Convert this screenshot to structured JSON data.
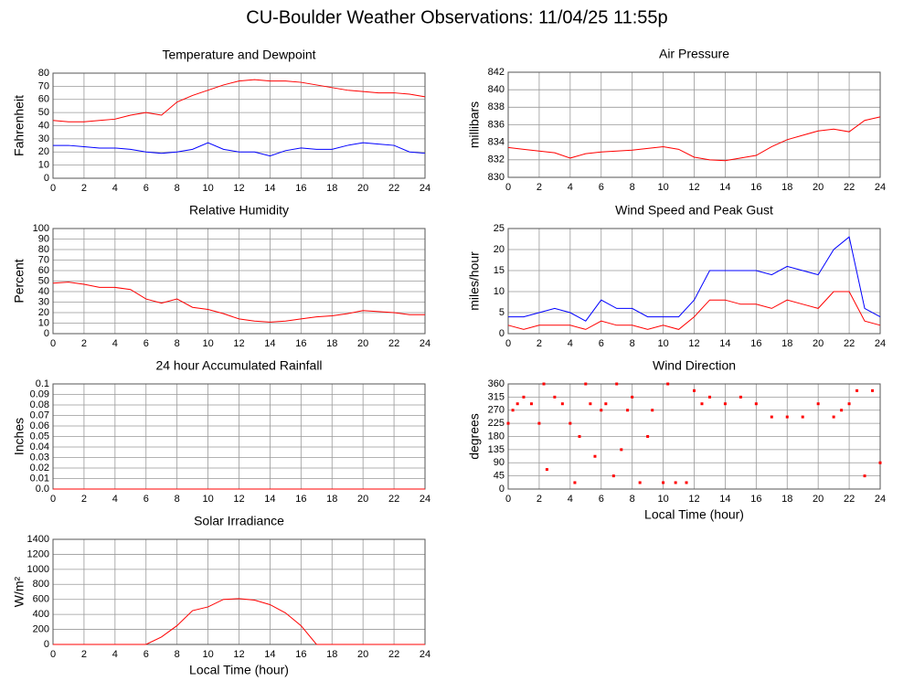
{
  "title": "CU-Boulder Weather Observations: 11/04/25 11:55p",
  "chart_data": [
    {
      "type": "line",
      "title": "Temperature and Dewpoint",
      "ylabel": "Fahrenheit",
      "x": [
        0,
        1,
        2,
        3,
        4,
        5,
        6,
        7,
        8,
        9,
        10,
        11,
        12,
        13,
        14,
        15,
        16,
        17,
        18,
        19,
        20,
        21,
        22,
        23,
        24
      ],
      "series": [
        {
          "name": "Temperature",
          "color": "#ff0000",
          "values": [
            44,
            43,
            43,
            44,
            45,
            48,
            50,
            48,
            58,
            63,
            67,
            71,
            74,
            75,
            74,
            74,
            73,
            71,
            69,
            67,
            66,
            65,
            65,
            64,
            62
          ]
        },
        {
          "name": "Dewpoint",
          "color": "#0000ff",
          "values": [
            25,
            25,
            24,
            23,
            23,
            22,
            20,
            19,
            20,
            22,
            27,
            22,
            20,
            20,
            17,
            21,
            23,
            22,
            22,
            25,
            27,
            26,
            25,
            20,
            19
          ]
        }
      ],
      "xlim": [
        0,
        24
      ],
      "xticks": [
        0,
        2,
        4,
        6,
        8,
        10,
        12,
        14,
        16,
        18,
        20,
        22,
        24
      ],
      "ylim": [
        0,
        80
      ],
      "yticks": [
        0,
        10,
        20,
        30,
        40,
        50,
        60,
        70,
        80
      ],
      "grid": true
    },
    {
      "type": "line",
      "title": "Air Pressure",
      "ylabel": "millibars",
      "x": [
        0,
        1,
        2,
        3,
        4,
        5,
        6,
        7,
        8,
        9,
        10,
        11,
        12,
        13,
        14,
        15,
        16,
        17,
        18,
        19,
        20,
        21,
        22,
        23,
        24
      ],
      "series": [
        {
          "name": "Pressure",
          "color": "#ff0000",
          "values": [
            833.4,
            833.2,
            833.0,
            832.8,
            832.2,
            832.7,
            832.9,
            833.0,
            833.1,
            833.3,
            833.5,
            833.2,
            832.3,
            832.0,
            831.9,
            832.2,
            832.5,
            833.5,
            834.3,
            834.8,
            835.3,
            835.5,
            835.2,
            836.5,
            836.9
          ]
        }
      ],
      "xlim": [
        0,
        24
      ],
      "xticks": [
        0,
        2,
        4,
        6,
        8,
        10,
        12,
        14,
        16,
        18,
        20,
        22,
        24
      ],
      "ylim": [
        830,
        842
      ],
      "yticks": [
        830,
        832,
        834,
        836,
        838,
        840,
        842
      ],
      "grid": true
    },
    {
      "type": "line",
      "title": "Relative Humidity",
      "ylabel": "Percent",
      "x": [
        0,
        1,
        2,
        3,
        4,
        5,
        6,
        7,
        8,
        9,
        10,
        11,
        12,
        13,
        14,
        15,
        16,
        17,
        18,
        19,
        20,
        21,
        22,
        23,
        24
      ],
      "series": [
        {
          "name": "Humidity",
          "color": "#ff0000",
          "values": [
            48,
            49,
            47,
            44,
            44,
            42,
            33,
            29,
            33,
            25,
            23,
            19,
            14,
            12,
            11,
            12,
            14,
            16,
            17,
            19,
            22,
            21,
            20,
            18,
            18
          ]
        }
      ],
      "xlim": [
        0,
        24
      ],
      "xticks": [
        0,
        2,
        4,
        6,
        8,
        10,
        12,
        14,
        16,
        18,
        20,
        22,
        24
      ],
      "ylim": [
        0,
        100
      ],
      "yticks": [
        0,
        10,
        20,
        30,
        40,
        50,
        60,
        70,
        80,
        90,
        100
      ],
      "grid": true
    },
    {
      "type": "line",
      "title": "Wind Speed and Peak Gust",
      "ylabel": "miles/hour",
      "x": [
        0,
        1,
        2,
        3,
        4,
        5,
        6,
        7,
        8,
        9,
        10,
        11,
        12,
        13,
        14,
        15,
        16,
        17,
        18,
        19,
        20,
        21,
        22,
        23,
        24
      ],
      "series": [
        {
          "name": "Peak Gust",
          "color": "#0000ff",
          "values": [
            4,
            4,
            5,
            6,
            5,
            3,
            8,
            6,
            6,
            4,
            4,
            4,
            8,
            15,
            15,
            15,
            15,
            14,
            16,
            15,
            14,
            20,
            23,
            6,
            4
          ]
        },
        {
          "name": "Wind Speed",
          "color": "#ff0000",
          "values": [
            2,
            1,
            2,
            2,
            2,
            1,
            3,
            2,
            2,
            1,
            2,
            1,
            4,
            8,
            8,
            7,
            7,
            6,
            8,
            7,
            6,
            10,
            10,
            3,
            2
          ]
        }
      ],
      "xlim": [
        0,
        24
      ],
      "xticks": [
        0,
        2,
        4,
        6,
        8,
        10,
        12,
        14,
        16,
        18,
        20,
        22,
        24
      ],
      "ylim": [
        0,
        25
      ],
      "yticks": [
        0,
        5,
        10,
        15,
        20,
        25
      ],
      "grid": true
    },
    {
      "type": "line",
      "title": "24 hour Accumulated Rainfall",
      "ylabel": "Inches",
      "x": [
        0,
        24
      ],
      "series": [
        {
          "name": "Rainfall",
          "color": "#ff0000",
          "values": [
            0,
            0
          ]
        }
      ],
      "xlim": [
        0,
        24
      ],
      "xticks": [
        0,
        2,
        4,
        6,
        8,
        10,
        12,
        14,
        16,
        18,
        20,
        22,
        24
      ],
      "ylim": [
        0,
        0.1
      ],
      "yticks": [
        {
          "value": 0,
          "label": "0.0"
        },
        0.01,
        0.02,
        0.03,
        0.04,
        0.05,
        0.06,
        0.07,
        0.08,
        0.09,
        0.1
      ],
      "grid": true
    },
    {
      "type": "scatter",
      "title": "Wind Direction",
      "ylabel": "degrees",
      "xlabel": "Local Time (hour)",
      "x": [
        0,
        0.3,
        0.6,
        1,
        1.5,
        2,
        2.3,
        2.5,
        3,
        3.5,
        4,
        4.3,
        4.6,
        5,
        5.3,
        5.6,
        6,
        6.3,
        6.8,
        7,
        7.3,
        7.7,
        8,
        8.5,
        9,
        9.3,
        10,
        10.3,
        10.8,
        11.5,
        12,
        12.5,
        13,
        14,
        15,
        16,
        17,
        18,
        19,
        20,
        21,
        21.5,
        22,
        22.5,
        23,
        23.5,
        24
      ],
      "series": [
        {
          "name": "Direction",
          "color": "#ff0000",
          "values": [
            225,
            270,
            292,
            315,
            292,
            225,
            360,
            67,
            315,
            292,
            225,
            22,
            180,
            360,
            292,
            112,
            270,
            292,
            45,
            360,
            135,
            270,
            315,
            22,
            180,
            270,
            22,
            360,
            22,
            22,
            337,
            292,
            315,
            292,
            315,
            292,
            247,
            247,
            247,
            292,
            247,
            270,
            292,
            337,
            45,
            337,
            90
          ]
        }
      ],
      "xlim": [
        0,
        24
      ],
      "xticks": [
        0,
        2,
        4,
        6,
        8,
        10,
        12,
        14,
        16,
        18,
        20,
        22,
        24
      ],
      "ylim": [
        0,
        360
      ],
      "yticks": [
        0,
        45,
        90,
        135,
        180,
        225,
        270,
        315,
        360
      ],
      "grid": true
    },
    {
      "type": "line",
      "title": "Solar Irradiance",
      "ylabel": "W/m²",
      "xlabel": "Local Time (hour)",
      "x": [
        0,
        1,
        2,
        3,
        4,
        5,
        6,
        7,
        8,
        9,
        10,
        11,
        12,
        13,
        14,
        15,
        16,
        17,
        18,
        19,
        20,
        21,
        22,
        23,
        24
      ],
      "series": [
        {
          "name": "Solar",
          "color": "#ff0000",
          "values": [
            0,
            0,
            0,
            0,
            0,
            0,
            0,
            100,
            250,
            450,
            500,
            600,
            610,
            590,
            530,
            420,
            250,
            0,
            0,
            0,
            0,
            0,
            0,
            0,
            0
          ]
        }
      ],
      "xlim": [
        0,
        24
      ],
      "xticks": [
        0,
        2,
        4,
        6,
        8,
        10,
        12,
        14,
        16,
        18,
        20,
        22,
        24
      ],
      "ylim": [
        0,
        1400
      ],
      "yticks": [
        0,
        200,
        400,
        600,
        800,
        1000,
        1200,
        1400
      ],
      "grid": true
    }
  ]
}
